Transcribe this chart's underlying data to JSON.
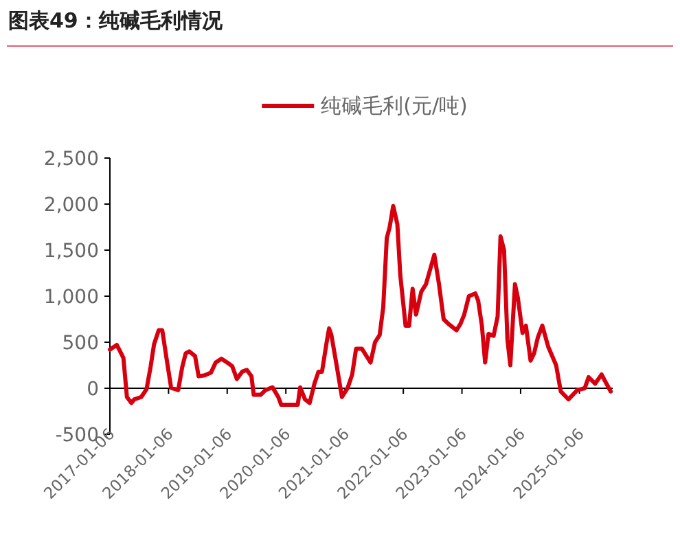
{
  "chart_data": {
    "type": "line",
    "title": "图表49：纯碱毛利情况",
    "x": [
      "2017-01-06",
      "2017-02-18",
      "2017-03-05",
      "2017-03-31",
      "2017-04-22",
      "2017-05-20",
      "2017-06-07",
      "2017-07-20",
      "2017-08-22",
      "2017-09-16",
      "2017-10-08",
      "2017-11-06",
      "2017-11-28",
      "2017-12-24",
      "2018-01-22",
      "2018-03-07",
      "2018-04-01",
      "2018-04-23",
      "2018-05-15",
      "2018-06-20",
      "2018-07-12",
      "2018-08-18",
      "2018-09-27",
      "2018-10-26",
      "2018-12-01",
      "2019-01-06",
      "2019-02-06",
      "2019-03-07",
      "2019-04-09",
      "2019-05-08",
      "2019-06-06",
      "2019-06-20",
      "2019-08-03",
      "2019-09-01",
      "2019-10-15",
      "2019-11-20",
      "2019-12-08",
      "2020-03-20",
      "2020-04-04",
      "2020-05-04",
      "2020-06-02",
      "2020-07-02",
      "2020-07-27",
      "2020-08-18",
      "2020-09-16",
      "2020-10-01",
      "2020-10-15",
      "2020-11-14",
      "2020-12-20",
      "2021-01-24",
      "2021-02-22",
      "2021-03-18",
      "2021-04-23",
      "2021-06-16",
      "2021-07-14",
      "2021-08-12",
      "2021-09-03",
      "2021-09-25",
      "2021-10-13",
      "2021-11-04",
      "2021-11-30",
      "2021-12-18",
      "2022-01-20",
      "2022-02-11",
      "2022-03-05",
      "2022-03-26",
      "2022-04-28",
      "2022-05-27",
      "2022-07-18",
      "2022-08-16",
      "2022-09-14",
      "2022-10-13",
      "2022-12-03",
      "2022-12-28",
      "2023-01-20",
      "2023-02-18",
      "2023-03-30",
      "2023-04-17",
      "2023-05-10",
      "2023-05-30",
      "2023-06-20",
      "2023-07-22",
      "2023-08-16",
      "2023-09-03",
      "2023-09-25",
      "2023-10-16",
      "2023-11-03",
      "2023-12-02",
      "2023-12-20",
      "2024-01-18",
      "2024-02-08",
      "2024-03-08",
      "2024-03-30",
      "2024-04-22",
      "2024-05-20",
      "2024-06-26",
      "2024-08-14",
      "2024-09-12",
      "2024-10-30",
      "2024-12-24",
      "2025-02-08",
      "2025-03-04",
      "2025-04-14",
      "2025-05-24",
      "2025-06-14",
      "2025-07-20"
    ],
    "series": [
      {
        "name": "纯碱毛利(元/吨)",
        "color": "#d7000f",
        "values": [
          420,
          470,
          420,
          330,
          -95,
          -160,
          -120,
          -95,
          -10,
          230,
          480,
          630,
          630,
          330,
          5,
          -20,
          230,
          380,
          400,
          350,
          130,
          140,
          170,
          280,
          320,
          280,
          240,
          100,
          180,
          200,
          130,
          -70,
          -70,
          -20,
          10,
          -95,
          -180,
          -180,
          10,
          -120,
          -160,
          50,
          180,
          180,
          500,
          650,
          580,
          280,
          -95,
          0,
          150,
          430,
          430,
          280,
          500,
          580,
          880,
          1630,
          1750,
          1980,
          1780,
          1230,
          680,
          680,
          1080,
          800,
          1050,
          1130,
          1450,
          1130,
          750,
          700,
          630,
          700,
          800,
          1000,
          1030,
          950,
          680,
          280,
          590,
          570,
          780,
          1650,
          1500,
          530,
          250,
          1130,
          980,
          600,
          680,
          300,
          380,
          550,
          680,
          450,
          250,
          -35,
          -120,
          -20,
          0,
          120,
          50,
          150,
          80,
          -35
        ]
      }
    ],
    "xlim": [
      "2017-01-06",
      "2025-08-01"
    ],
    "xticks": [
      "2017-01-06",
      "2018-01-06",
      "2019-01-06",
      "2020-01-06",
      "2021-01-06",
      "2022-01-06",
      "2023-01-06",
      "2024-01-06",
      "2025-01-06"
    ],
    "ylim": [
      -500,
      2500
    ],
    "yticks": [
      {
        "value": 2500,
        "label": "2,500"
      },
      {
        "value": 2000,
        "label": "2,000"
      },
      {
        "value": 1500,
        "label": "1,500"
      },
      {
        "value": 1000,
        "label": "1,000"
      },
      500,
      0,
      -500
    ],
    "legend": "top",
    "marker": "none",
    "line_style": "solid"
  }
}
